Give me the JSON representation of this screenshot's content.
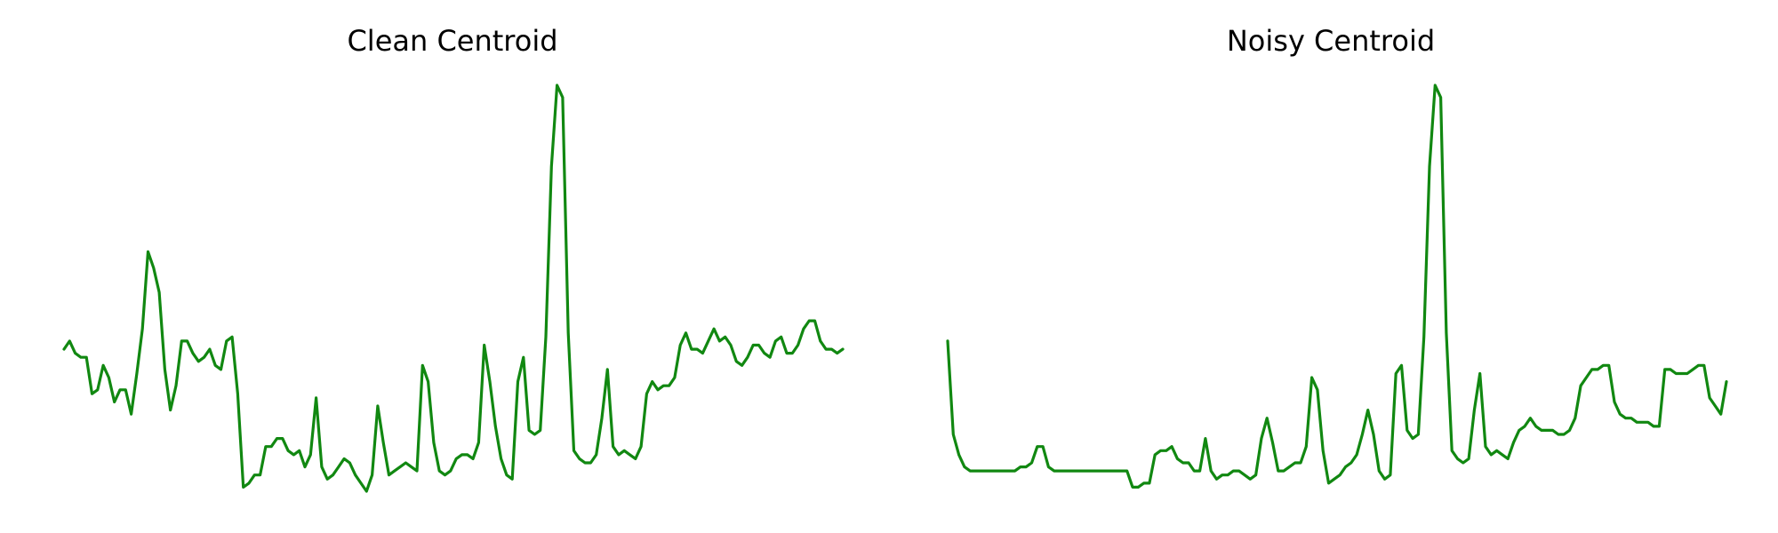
{
  "colors": {
    "line": "#118811",
    "background": "#ffffff"
  },
  "chart_data": [
    {
      "type": "line",
      "title": "Clean Centroid",
      "xlabel": "",
      "ylabel": "",
      "axes_visible": false,
      "grid": false,
      "xlim": [
        0,
        139
      ],
      "ylim": [
        0,
        1
      ],
      "series": [
        {
          "values": [
            0.35,
            0.37,
            0.34,
            0.33,
            0.33,
            0.24,
            0.25,
            0.31,
            0.28,
            0.22,
            0.25,
            0.25,
            0.19,
            0.29,
            0.4,
            0.59,
            0.55,
            0.49,
            0.3,
            0.2,
            0.26,
            0.37,
            0.37,
            0.34,
            0.32,
            0.33,
            0.35,
            0.31,
            0.3,
            0.37,
            0.38,
            0.24,
            0.01,
            0.02,
            0.04,
            0.04,
            0.11,
            0.11,
            0.13,
            0.13,
            0.1,
            0.09,
            0.1,
            0.06,
            0.09,
            0.23,
            0.06,
            0.03,
            0.04,
            0.06,
            0.08,
            0.07,
            0.04,
            0.02,
            0.0,
            0.04,
            0.21,
            0.12,
            0.04,
            0.05,
            0.06,
            0.07,
            0.06,
            0.05,
            0.31,
            0.27,
            0.12,
            0.05,
            0.04,
            0.05,
            0.08,
            0.09,
            0.09,
            0.08,
            0.12,
            0.36,
            0.27,
            0.16,
            0.08,
            0.04,
            0.03,
            0.27,
            0.33,
            0.15,
            0.14,
            0.15,
            0.38,
            0.8,
            1.0,
            0.97,
            0.39,
            0.1,
            0.08,
            0.07,
            0.07,
            0.09,
            0.18,
            0.3,
            0.11,
            0.09,
            0.1,
            0.09,
            0.08,
            0.11,
            0.24,
            0.27,
            0.25,
            0.26,
            0.26,
            0.28,
            0.36,
            0.39,
            0.35,
            0.35,
            0.34,
            0.37,
            0.4,
            0.37,
            0.38,
            0.36,
            0.32,
            0.31,
            0.33,
            0.36,
            0.36,
            0.34,
            0.33,
            0.37,
            0.38,
            0.34,
            0.34,
            0.36,
            0.4,
            0.42,
            0.42,
            0.37,
            0.35,
            0.35,
            0.34,
            0.35
          ]
        }
      ]
    },
    {
      "type": "line",
      "title": "Noisy Centroid",
      "xlabel": "",
      "ylabel": "",
      "axes_visible": false,
      "grid": false,
      "xlim": [
        0,
        139
      ],
      "ylim": [
        0,
        1
      ],
      "series": [
        {
          "values": [
            0.37,
            0.14,
            0.09,
            0.06,
            0.05,
            0.05,
            0.05,
            0.05,
            0.05,
            0.05,
            0.05,
            0.05,
            0.05,
            0.06,
            0.06,
            0.07,
            0.11,
            0.11,
            0.06,
            0.05,
            0.05,
            0.05,
            0.05,
            0.05,
            0.05,
            0.05,
            0.05,
            0.05,
            0.05,
            0.05,
            0.05,
            0.05,
            0.05,
            0.01,
            0.01,
            0.02,
            0.02,
            0.09,
            0.1,
            0.1,
            0.11,
            0.08,
            0.07,
            0.07,
            0.05,
            0.05,
            0.13,
            0.05,
            0.03,
            0.04,
            0.04,
            0.05,
            0.05,
            0.04,
            0.03,
            0.04,
            0.13,
            0.18,
            0.12,
            0.05,
            0.05,
            0.06,
            0.07,
            0.07,
            0.11,
            0.28,
            0.25,
            0.1,
            0.02,
            0.03,
            0.04,
            0.06,
            0.07,
            0.09,
            0.14,
            0.2,
            0.14,
            0.05,
            0.03,
            0.04,
            0.29,
            0.31,
            0.15,
            0.13,
            0.14,
            0.38,
            0.8,
            1.0,
            0.97,
            0.39,
            0.1,
            0.08,
            0.07,
            0.08,
            0.2,
            0.29,
            0.11,
            0.09,
            0.1,
            0.09,
            0.08,
            0.12,
            0.15,
            0.16,
            0.18,
            0.16,
            0.15,
            0.15,
            0.15,
            0.14,
            0.14,
            0.15,
            0.18,
            0.26,
            0.28,
            0.3,
            0.3,
            0.31,
            0.31,
            0.22,
            0.19,
            0.18,
            0.18,
            0.17,
            0.17,
            0.17,
            0.16,
            0.16,
            0.3,
            0.3,
            0.29,
            0.29,
            0.29,
            0.3,
            0.31,
            0.31,
            0.23,
            0.21,
            0.19,
            0.27
          ]
        }
      ]
    }
  ]
}
